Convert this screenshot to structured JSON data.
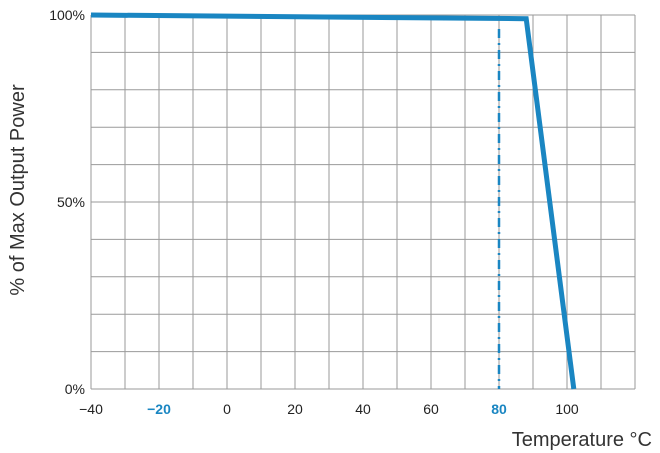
{
  "chart_data": {
    "type": "line",
    "title": "",
    "xlabel": "Temperature °C",
    "ylabel": "% of Max Output Power",
    "xlim": [
      -40,
      120
    ],
    "ylim": [
      0,
      100
    ],
    "grid": true,
    "x_ticks": [
      {
        "value": -40,
        "label": "−40",
        "highlight": false
      },
      {
        "value": -20,
        "label": "−20",
        "highlight": true
      },
      {
        "value": 0,
        "label": "0",
        "highlight": false
      },
      {
        "value": 20,
        "label": "20",
        "highlight": false
      },
      {
        "value": 40,
        "label": "40",
        "highlight": false
      },
      {
        "value": 60,
        "label": "60",
        "highlight": false
      },
      {
        "value": 80,
        "label": "80",
        "highlight": true
      },
      {
        "value": 100,
        "label": "100",
        "highlight": false
      }
    ],
    "y_ticks": [
      {
        "value": 0,
        "label": "0%"
      },
      {
        "value": 50,
        "label": "50%"
      },
      {
        "value": 100,
        "label": "100%"
      }
    ],
    "series": [
      {
        "x": [
          -40,
          88,
          102
        ],
        "y": [
          100,
          99,
          0
        ],
        "color": "#1a86c2"
      }
    ],
    "reference_lines": [
      {
        "orientation": "vertical",
        "x": 80,
        "style": "dash-dot",
        "color": "#1a86c2"
      }
    ]
  }
}
